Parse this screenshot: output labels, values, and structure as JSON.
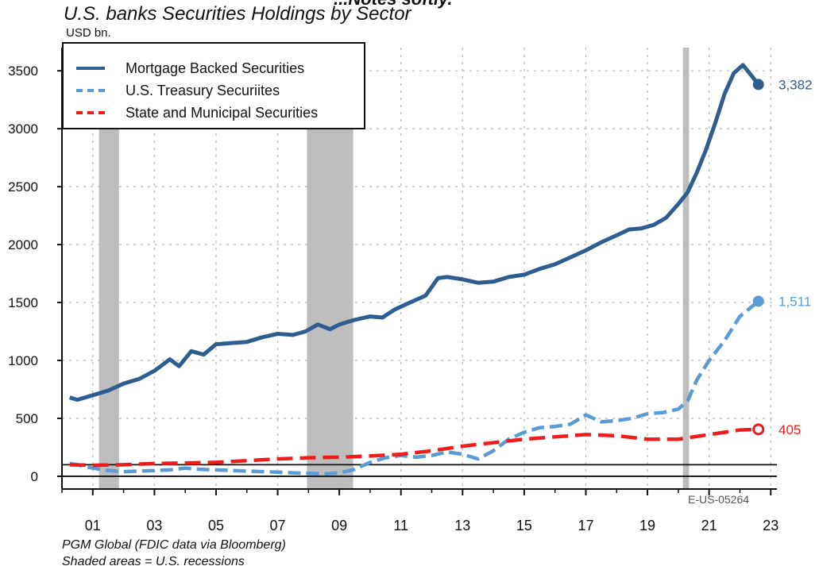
{
  "header": {
    "top_cut_text": "...Notes softly.",
    "title": "U.S. banks Securities Holdings by Sector",
    "unit": "USD bn."
  },
  "footer": {
    "source": "PGM Global (FDIC data via Bloomberg)",
    "note": "Shaded areas = U.S. recessions",
    "code": "E-US-05264"
  },
  "colors": {
    "mbs": "#2f5d8f",
    "treasury": "#5b9bd5",
    "municipal": "#ee1c1c",
    "recession": "#bdbdbd",
    "grid": "#b8b8b8"
  },
  "chart_data": {
    "type": "line",
    "title": "U.S. banks Securities Holdings by Sector",
    "ylabel": "USD bn.",
    "xlabel": "",
    "xlim": [
      2000,
      2023.2
    ],
    "ylim": [
      -110,
      3700
    ],
    "yticks": [
      0,
      500,
      1000,
      1500,
      2000,
      2500,
      3000,
      3500
    ],
    "xticks": [
      {
        "label": "01",
        "x": 2001
      },
      {
        "label": "03",
        "x": 2003
      },
      {
        "label": "05",
        "x": 2005
      },
      {
        "label": "07",
        "x": 2007
      },
      {
        "label": "09",
        "x": 2009
      },
      {
        "label": "11",
        "x": 2011
      },
      {
        "label": "13",
        "x": 2013
      },
      {
        "label": "15",
        "x": 2015
      },
      {
        "label": "17",
        "x": 2017
      },
      {
        "label": "19",
        "x": 2019
      },
      {
        "label": "21",
        "x": 2021
      },
      {
        "label": "23",
        "x": 2023
      }
    ],
    "grid": true,
    "legend_position": "top-left",
    "reference_lines": [
      0,
      100
    ],
    "recessions": [
      {
        "start": 2001.2,
        "end": 2001.85
      },
      {
        "start": 2007.95,
        "end": 2009.45
      },
      {
        "start": 2020.15,
        "end": 2020.35
      }
    ],
    "series": [
      {
        "name": "Mortgage Backed Securities",
        "key": "mbs",
        "style": "solid",
        "end_label": "3,382",
        "end_marker": "filled",
        "points": [
          [
            2000.25,
            680
          ],
          [
            2000.5,
            660
          ],
          [
            2001.0,
            700
          ],
          [
            2001.5,
            740
          ],
          [
            2002.0,
            800
          ],
          [
            2002.5,
            840
          ],
          [
            2003.0,
            910
          ],
          [
            2003.5,
            1010
          ],
          [
            2003.8,
            950
          ],
          [
            2004.2,
            1080
          ],
          [
            2004.6,
            1050
          ],
          [
            2005.0,
            1140
          ],
          [
            2005.5,
            1150
          ],
          [
            2006.0,
            1160
          ],
          [
            2006.5,
            1200
          ],
          [
            2007.0,
            1230
          ],
          [
            2007.5,
            1220
          ],
          [
            2007.9,
            1250
          ],
          [
            2008.3,
            1310
          ],
          [
            2008.7,
            1270
          ],
          [
            2009.0,
            1310
          ],
          [
            2009.5,
            1350
          ],
          [
            2010.0,
            1380
          ],
          [
            2010.4,
            1370
          ],
          [
            2010.8,
            1440
          ],
          [
            2011.3,
            1500
          ],
          [
            2011.8,
            1560
          ],
          [
            2012.2,
            1710
          ],
          [
            2012.5,
            1720
          ],
          [
            2013.0,
            1700
          ],
          [
            2013.5,
            1670
          ],
          [
            2014.0,
            1680
          ],
          [
            2014.5,
            1720
          ],
          [
            2015.0,
            1740
          ],
          [
            2015.5,
            1790
          ],
          [
            2016.0,
            1830
          ],
          [
            2016.5,
            1890
          ],
          [
            2017.0,
            1950
          ],
          [
            2017.5,
            2020
          ],
          [
            2018.0,
            2080
          ],
          [
            2018.4,
            2130
          ],
          [
            2018.8,
            2140
          ],
          [
            2019.2,
            2170
          ],
          [
            2019.6,
            2230
          ],
          [
            2020.0,
            2350
          ],
          [
            2020.3,
            2450
          ],
          [
            2020.6,
            2620
          ],
          [
            2020.9,
            2820
          ],
          [
            2021.2,
            3050
          ],
          [
            2021.5,
            3300
          ],
          [
            2021.8,
            3480
          ],
          [
            2022.1,
            3550
          ],
          [
            2022.4,
            3450
          ],
          [
            2022.6,
            3382
          ]
        ]
      },
      {
        "name": "U.S. Treasury Securiites",
        "key": "treasury",
        "style": "dashed",
        "end_label": "1,511",
        "end_marker": "filled",
        "points": [
          [
            2000.25,
            110
          ],
          [
            2000.5,
            100
          ],
          [
            2001.0,
            70
          ],
          [
            2001.5,
            50
          ],
          [
            2002.0,
            40
          ],
          [
            2002.5,
            45
          ],
          [
            2003.0,
            50
          ],
          [
            2003.5,
            55
          ],
          [
            2004.0,
            70
          ],
          [
            2004.5,
            60
          ],
          [
            2005.0,
            55
          ],
          [
            2005.5,
            50
          ],
          [
            2006.0,
            45
          ],
          [
            2006.5,
            40
          ],
          [
            2007.0,
            35
          ],
          [
            2007.5,
            30
          ],
          [
            2008.0,
            25
          ],
          [
            2008.5,
            20
          ],
          [
            2009.0,
            30
          ],
          [
            2009.5,
            60
          ],
          [
            2010.0,
            120
          ],
          [
            2010.5,
            160
          ],
          [
            2011.0,
            180
          ],
          [
            2011.5,
            165
          ],
          [
            2012.0,
            180
          ],
          [
            2012.5,
            210
          ],
          [
            2013.0,
            190
          ],
          [
            2013.5,
            150
          ],
          [
            2014.0,
            220
          ],
          [
            2014.5,
            320
          ],
          [
            2015.0,
            380
          ],
          [
            2015.5,
            420
          ],
          [
            2016.0,
            430
          ],
          [
            2016.5,
            450
          ],
          [
            2017.0,
            530
          ],
          [
            2017.5,
            470
          ],
          [
            2018.0,
            480
          ],
          [
            2018.5,
            500
          ],
          [
            2019.0,
            540
          ],
          [
            2019.5,
            550
          ],
          [
            2020.0,
            580
          ],
          [
            2020.3,
            650
          ],
          [
            2020.6,
            830
          ],
          [
            2021.0,
            1000
          ],
          [
            2021.5,
            1170
          ],
          [
            2022.0,
            1380
          ],
          [
            2022.6,
            1511
          ]
        ]
      },
      {
        "name": "State and Municipal Securities",
        "key": "municipal",
        "style": "dashed",
        "end_label": "405",
        "end_marker": "open",
        "points": [
          [
            2000.25,
            100
          ],
          [
            2001.0,
            95
          ],
          [
            2002.0,
            100
          ],
          [
            2003.0,
            110
          ],
          [
            2004.0,
            115
          ],
          [
            2005.0,
            120
          ],
          [
            2006.0,
            135
          ],
          [
            2007.0,
            150
          ],
          [
            2008.0,
            160
          ],
          [
            2009.0,
            165
          ],
          [
            2010.0,
            175
          ],
          [
            2011.0,
            190
          ],
          [
            2012.0,
            220
          ],
          [
            2013.0,
            260
          ],
          [
            2014.0,
            290
          ],
          [
            2015.0,
            320
          ],
          [
            2016.0,
            340
          ],
          [
            2017.0,
            360
          ],
          [
            2018.0,
            350
          ],
          [
            2019.0,
            320
          ],
          [
            2020.0,
            320
          ],
          [
            2021.0,
            360
          ],
          [
            2022.0,
            400
          ],
          [
            2022.6,
            405
          ]
        ]
      }
    ]
  }
}
